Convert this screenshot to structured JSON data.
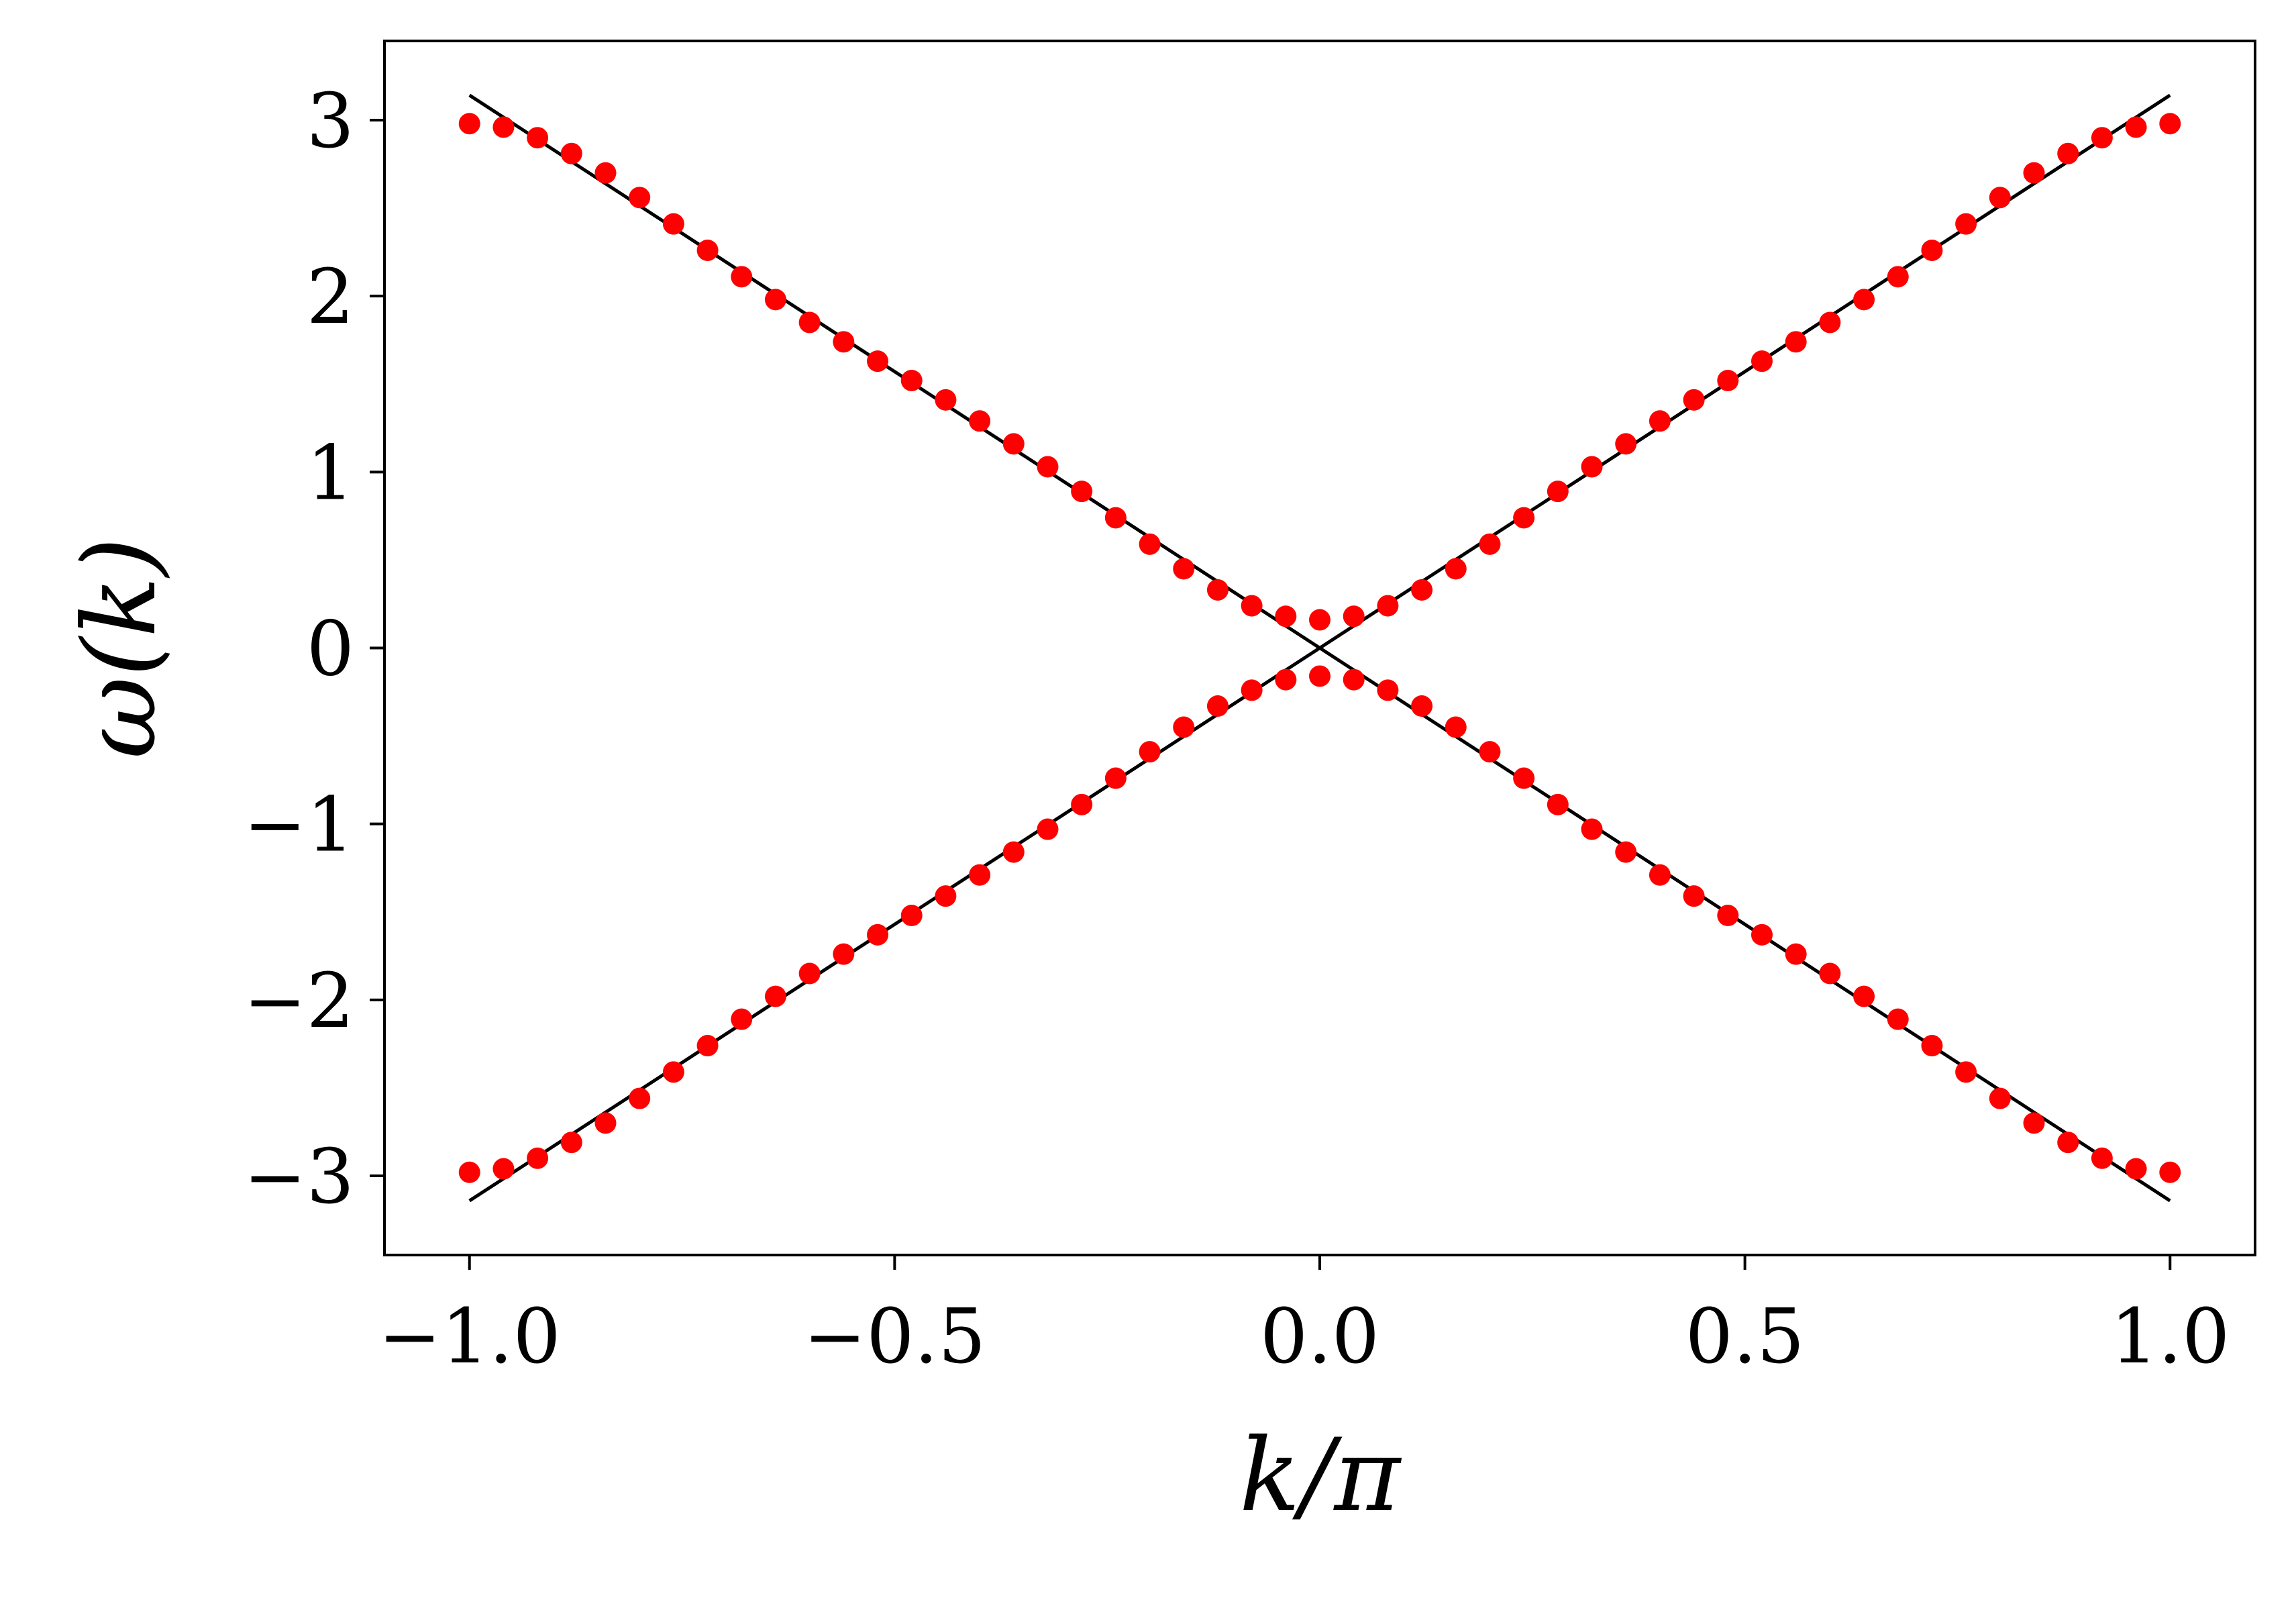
{
  "chart_data": {
    "type": "scatter",
    "xlabel": "k/π",
    "ylabel": "ω(k)",
    "xlim": [
      -1.1,
      1.1
    ],
    "ylim": [
      -3.45,
      3.45
    ],
    "grid": false,
    "x_ticks": [
      -1.0,
      -0.5,
      0.0,
      0.5,
      1.0
    ],
    "x_tick_labels": [
      "−1.0",
      "−0.5",
      "0.0",
      "0.5",
      "1.0"
    ],
    "y_ticks": [
      -3,
      -2,
      -1,
      0,
      1,
      2,
      3
    ],
    "y_tick_labels": [
      "−3",
      "−2",
      "−1",
      "0",
      "1",
      "2",
      "3"
    ],
    "colors": {
      "points": "#ff0000",
      "lines": "#000000",
      "axes": "#000000"
    },
    "lines": [
      {
        "x": [
          -1.0,
          1.0
        ],
        "y": [
          -3.1416,
          3.1416
        ]
      },
      {
        "x": [
          -1.0,
          1.0
        ],
        "y": [
          3.1416,
          -3.1416
        ]
      }
    ],
    "scatter_x": [
      -1.0,
      -0.96,
      -0.92,
      -0.88,
      -0.84,
      -0.8,
      -0.76,
      -0.72,
      -0.68,
      -0.64,
      -0.6,
      -0.56,
      -0.52,
      -0.48,
      -0.44,
      -0.4,
      -0.36,
      -0.32,
      -0.28,
      -0.24,
      -0.2,
      -0.16,
      -0.12,
      -0.08,
      -0.04,
      0.0,
      0.04,
      0.08,
      0.12,
      0.16,
      0.2,
      0.24,
      0.28,
      0.32,
      0.36,
      0.4,
      0.44,
      0.48,
      0.52,
      0.56,
      0.6,
      0.64,
      0.68,
      0.72,
      0.76,
      0.8,
      0.84,
      0.88,
      0.92,
      0.96,
      1.0
    ],
    "scatter_y_upper": [
      2.98,
      2.96,
      2.9,
      2.81,
      2.7,
      2.56,
      2.41,
      2.26,
      2.11,
      1.98,
      1.85,
      1.74,
      1.63,
      1.52,
      1.41,
      1.29,
      1.16,
      1.03,
      0.89,
      0.74,
      0.59,
      0.45,
      0.33,
      0.24,
      0.18,
      0.16,
      0.18,
      0.24,
      0.33,
      0.45,
      0.59,
      0.74,
      0.89,
      1.03,
      1.16,
      1.29,
      1.41,
      1.52,
      1.63,
      1.74,
      1.85,
      1.98,
      2.11,
      2.26,
      2.41,
      2.56,
      2.7,
      2.81,
      2.9,
      2.96,
      2.98
    ]
  }
}
